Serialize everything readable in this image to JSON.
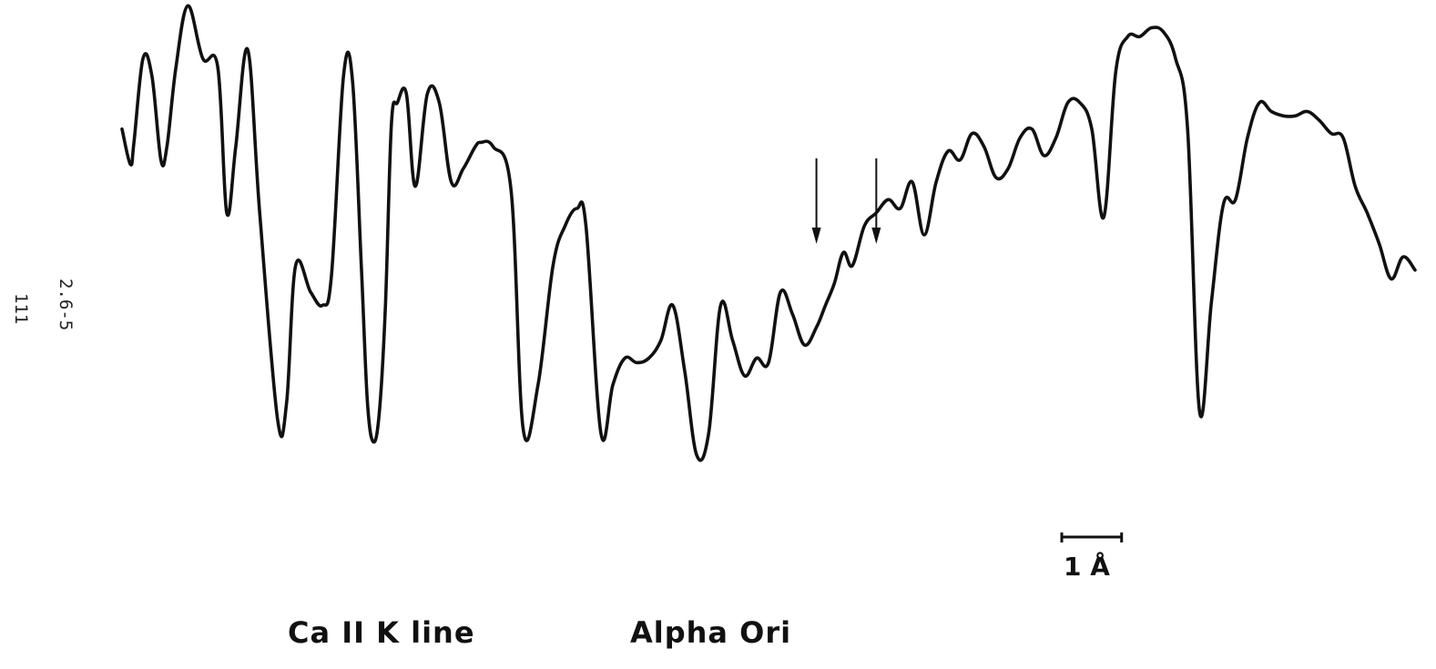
{
  "side_labels": {
    "figure_ref": "2.6-5",
    "page_number": "111"
  },
  "caption": {
    "species": "Ca II  K  line",
    "star": "Alpha  Ori"
  },
  "scale_bar": {
    "label": "1 Å",
    "length_angstrom": 1
  },
  "colors": {
    "trace": "#111111",
    "background": "#ffffff"
  },
  "chart_data": {
    "type": "line",
    "title": "",
    "xlabel": "",
    "ylabel": "",
    "grid": false,
    "legend": "none",
    "units": {
      "x": "Å (relative wavelength)",
      "y": "relative intensity"
    },
    "xlim": [
      0,
      21.6
    ],
    "ylim": [
      0,
      1
    ],
    "annotations": [
      {
        "type": "arrow",
        "x": 11.6,
        "pointing": "down"
      },
      {
        "type": "arrow",
        "x": 12.6,
        "pointing": "down"
      }
    ],
    "series": [
      {
        "x": [
          0.0,
          0.14,
          0.2,
          0.35,
          0.5,
          0.65,
          0.75,
          0.9,
          1.1,
          1.35,
          1.6,
          1.75,
          1.9,
          2.1,
          2.3,
          2.6,
          2.75,
          2.9,
          3.15,
          3.35,
          3.5,
          3.7,
          3.85,
          4.0,
          4.1,
          4.2,
          4.3,
          4.4,
          4.5,
          4.6,
          4.75,
          4.9,
          5.1,
          5.3,
          5.5,
          5.7,
          5.9,
          6.0,
          6.2,
          6.5,
          6.7,
          6.95,
          7.2,
          7.4,
          7.6,
          7.75,
          8.0,
          8.2,
          8.4,
          8.6,
          8.8,
          9.0,
          9.2,
          9.4,
          9.6,
          9.8,
          10.0,
          10.2,
          10.4,
          10.6,
          10.8,
          11.0,
          11.2,
          11.4,
          11.6,
          11.75,
          11.9,
          12.05,
          12.2,
          12.4,
          12.6,
          12.8,
          13.0,
          13.2,
          13.4,
          13.6,
          13.8,
          14.0,
          14.2,
          14.4,
          14.6,
          14.8,
          15.0,
          15.2,
          15.4,
          15.6,
          15.8,
          16.0,
          16.2,
          16.4,
          16.6,
          16.8,
          17.0,
          17.2,
          17.4,
          17.6,
          17.8,
          18.0,
          18.2,
          18.4,
          18.6,
          18.8,
          19.0,
          19.2,
          19.4,
          19.6,
          19.8,
          20.0,
          20.2,
          20.4,
          20.6,
          20.8,
          21.0,
          21.2,
          21.4,
          21.6
        ],
        "y": [
          0.74,
          0.66,
          0.71,
          0.9,
          0.86,
          0.67,
          0.7,
          0.88,
          1.02,
          0.9,
          0.88,
          0.55,
          0.7,
          0.92,
          0.55,
          0.08,
          0.12,
          0.43,
          0.37,
          0.34,
          0.41,
          0.86,
          0.85,
          0.42,
          0.12,
          0.03,
          0.1,
          0.34,
          0.75,
          0.8,
          0.82,
          0.61,
          0.82,
          0.8,
          0.62,
          0.65,
          0.7,
          0.71,
          0.7,
          0.6,
          0.06,
          0.16,
          0.43,
          0.52,
          0.56,
          0.52,
          0.05,
          0.16,
          0.22,
          0.21,
          0.22,
          0.26,
          0.34,
          0.19,
          0.0,
          0.05,
          0.34,
          0.26,
          0.18,
          0.22,
          0.21,
          0.37,
          0.32,
          0.25,
          0.29,
          0.34,
          0.39,
          0.46,
          0.43,
          0.52,
          0.55,
          0.58,
          0.56,
          0.62,
          0.5,
          0.62,
          0.69,
          0.67,
          0.73,
          0.7,
          0.63,
          0.65,
          0.72,
          0.74,
          0.68,
          0.72,
          0.8,
          0.8,
          0.74,
          0.54,
          0.87,
          0.95,
          0.95,
          0.97,
          0.96,
          0.9,
          0.74,
          0.1,
          0.35,
          0.57,
          0.58,
          0.72,
          0.8,
          0.78,
          0.77,
          0.77,
          0.78,
          0.76,
          0.73,
          0.72,
          0.61,
          0.55,
          0.48,
          0.4,
          0.45,
          0.42
        ]
      }
    ]
  }
}
